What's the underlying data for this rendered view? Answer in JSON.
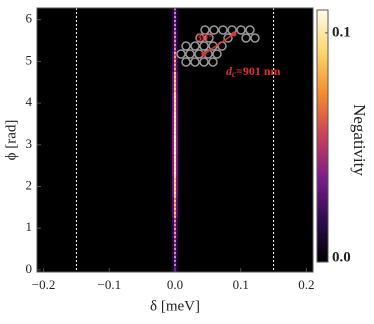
{
  "chart_data": {
    "type": "heatmap",
    "xlabel": "δ [meV]",
    "ylabel": "ϕ [rad]",
    "xlim": [
      -0.21,
      0.21
    ],
    "ylim": [
      -0.05,
      6.28
    ],
    "xticks": [
      {
        "value": -0.2,
        "label": "−0.2"
      },
      {
        "value": -0.1,
        "label": "−0.1"
      },
      {
        "value": 0,
        "label": "0.0"
      },
      {
        "value": 0.1,
        "label": "0.1"
      },
      {
        "value": 0.2,
        "label": "0.2"
      }
    ],
    "yticks": [
      0,
      1,
      2,
      3,
      4,
      5,
      6
    ],
    "x": [
      -0.006,
      -0.003,
      0,
      0.003,
      0.006
    ],
    "y": [
      0,
      0.5,
      1,
      1.5,
      2,
      2.5,
      3,
      3.5,
      4,
      4.5,
      5,
      5.5,
      6
    ],
    "z": [
      [
        0.003,
        0.012,
        0.03,
        0.012,
        0.003
      ],
      [
        0.004,
        0.016,
        0.04,
        0.016,
        0.004
      ],
      [
        0.005,
        0.02,
        0.05,
        0.02,
        0.005
      ],
      [
        0.007,
        0.028,
        0.07,
        0.028,
        0.007
      ],
      [
        0.008,
        0.034,
        0.085,
        0.034,
        0.008
      ],
      [
        0.009,
        0.038,
        0.095,
        0.038,
        0.009
      ],
      [
        0.01,
        0.04,
        0.1,
        0.04,
        0.01
      ],
      [
        0.009,
        0.038,
        0.095,
        0.038,
        0.009
      ],
      [
        0.009,
        0.036,
        0.09,
        0.036,
        0.009
      ],
      [
        0.008,
        0.032,
        0.08,
        0.032,
        0.008
      ],
      [
        0.006,
        0.024,
        0.06,
        0.024,
        0.006
      ],
      [
        0.005,
        0.018,
        0.045,
        0.018,
        0.005
      ],
      [
        0.004,
        0.014,
        0.035,
        0.014,
        0.004
      ]
    ],
    "dashed_lines": [
      -0.15,
      0,
      0.15
    ],
    "colormap": [
      "#000000",
      "#2d0b4e",
      "#7a1d8a",
      "#c93f5a",
      "#f28a2e",
      "#fbd66a",
      "#fffbe8"
    ],
    "clim": [
      0,
      0.11
    ],
    "cticks": [
      {
        "value": 0,
        "label": "0.0"
      },
      {
        "value": 0.1,
        "label": "0.1"
      }
    ],
    "colorbar_label": "Negativity",
    "annotation": {
      "angle": "30°",
      "d": "d",
      "sub": "c",
      "value": "=901 nm"
    }
  }
}
